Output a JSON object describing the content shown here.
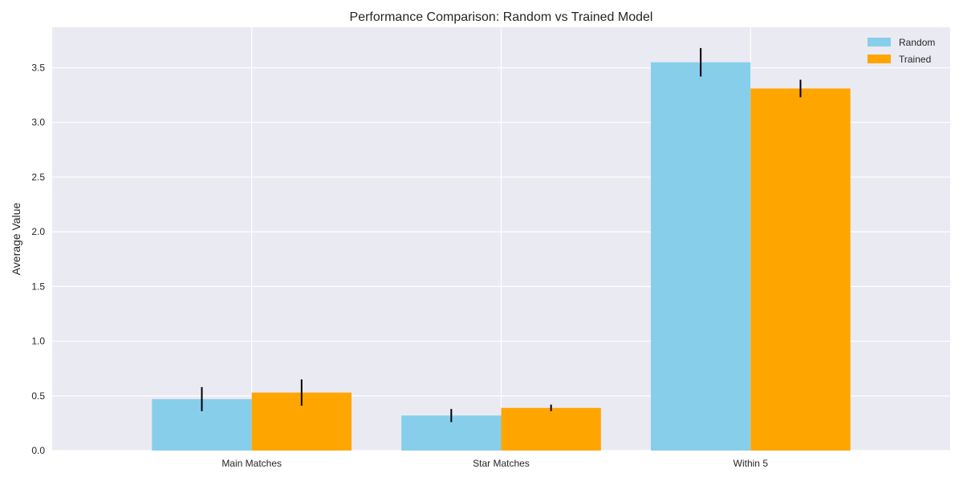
{
  "chart_data": {
    "type": "bar",
    "title": "Performance Comparison: Random vs Trained Model",
    "xlabel": "",
    "ylabel": "Average Value",
    "categories": [
      "Main Matches",
      "Star Matches",
      "Within 5"
    ],
    "series": [
      {
        "name": "Random",
        "color": "#87CEEB",
        "values": [
          0.47,
          0.32,
          3.55
        ],
        "errors": [
          0.11,
          0.06,
          0.13
        ]
      },
      {
        "name": "Trained",
        "color": "#FFA500",
        "values": [
          0.53,
          0.39,
          3.31
        ],
        "errors": [
          0.12,
          0.03,
          0.08
        ]
      }
    ],
    "ylim": [
      0,
      3.87
    ],
    "yticks": [
      "0.0",
      "0.5",
      "1.0",
      "1.5",
      "2.0",
      "2.5",
      "3.0",
      "3.5"
    ],
    "grid": true,
    "legend_position": "top-right",
    "background_color": "#EAEAF2",
    "grid_color": "#FFFFFF",
    "error_bar_color": "#000000"
  }
}
